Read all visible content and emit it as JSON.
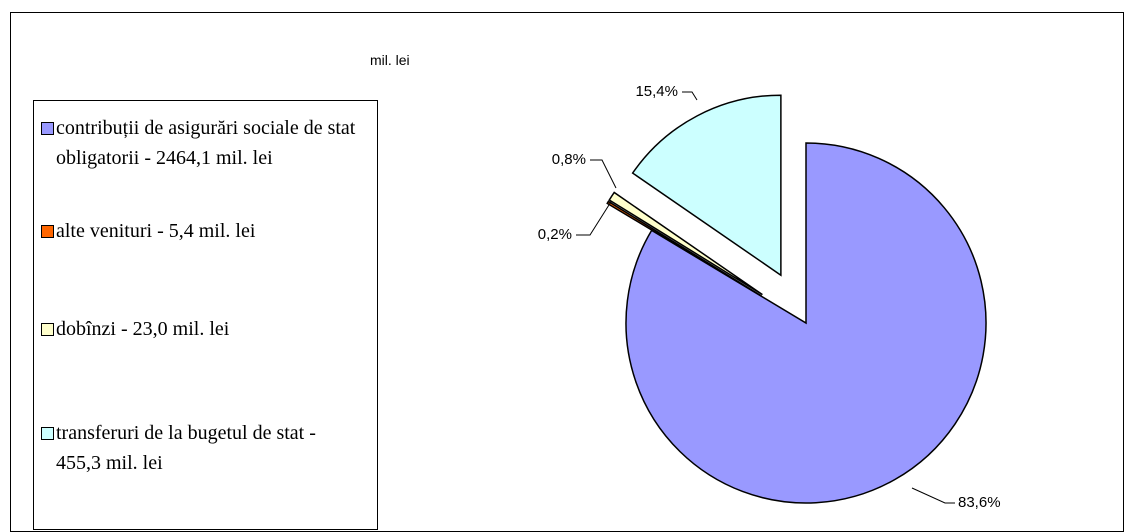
{
  "chart_data": {
    "type": "pie",
    "subtitle": "mil. lei",
    "categories": [
      "contribuții de asigurări sociale de stat obligatorii - 2464,1 mil. lei",
      "alte venituri - 5,4 mil. lei",
      "dobînzi - 23,0 mil. lei",
      "transferuri de la bugetul de stat - 455,3 mil. lei"
    ],
    "values": [
      83.6,
      0.2,
      0.8,
      15.4
    ],
    "value_labels": [
      "83,6%",
      "0,2%",
      "0,8%",
      "15,4%"
    ],
    "colors": [
      "#9999ff",
      "#ff6600",
      "#ffffcc",
      "#ccffff"
    ],
    "legend": "left"
  }
}
